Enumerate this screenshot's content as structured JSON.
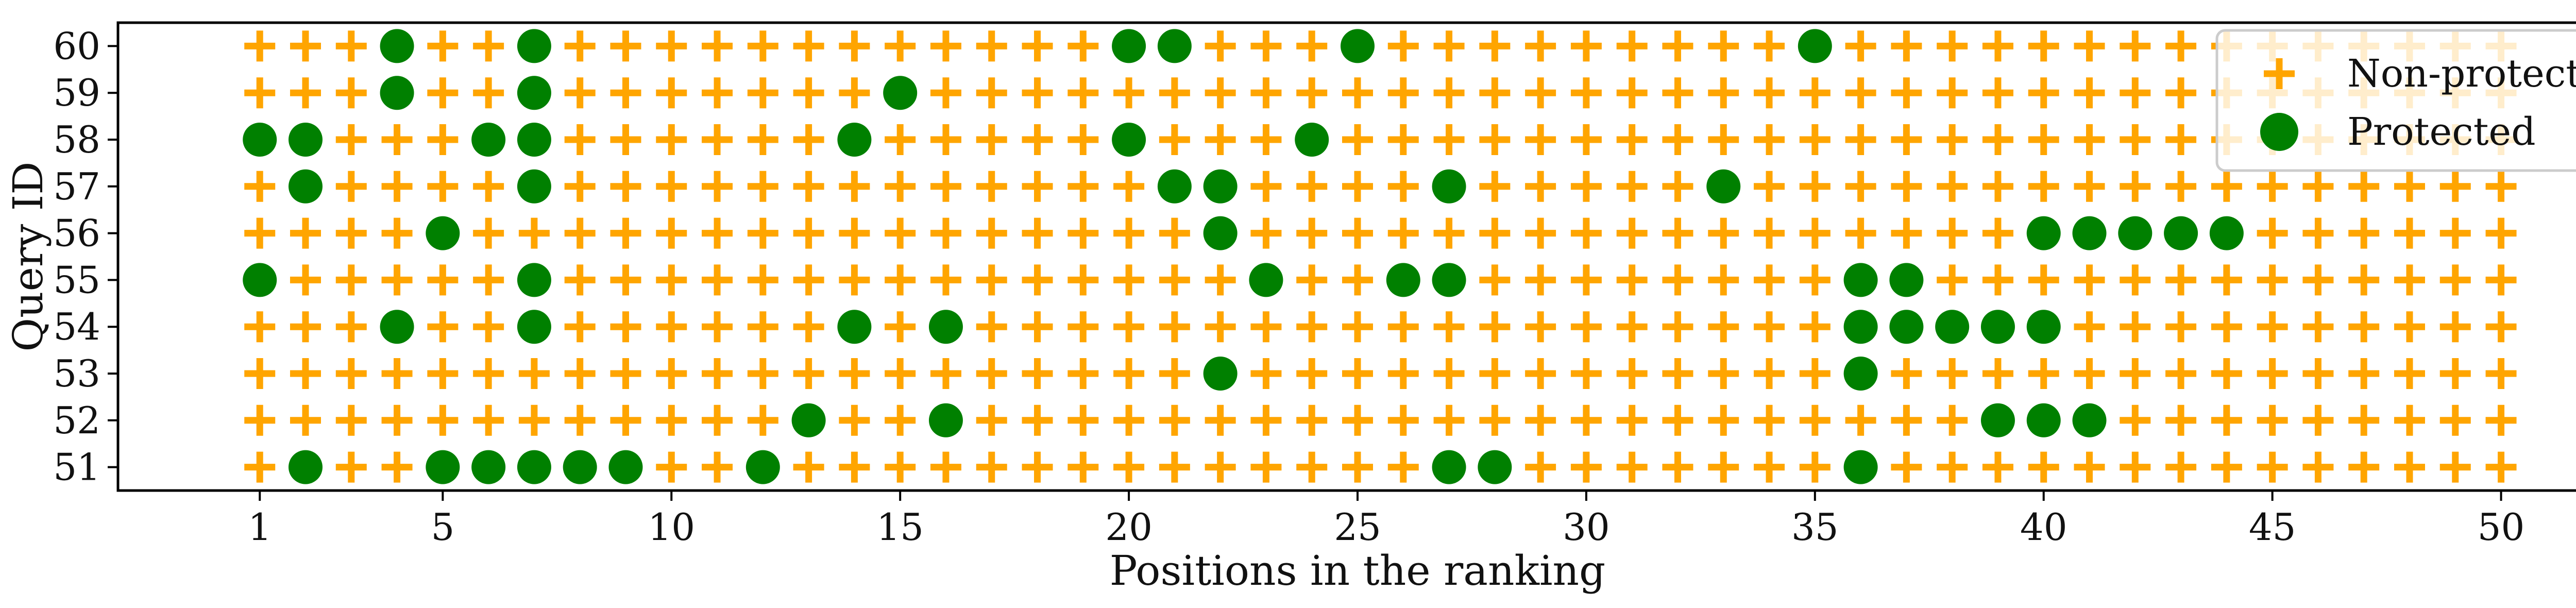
{
  "chart_data": {
    "type": "scatter",
    "xlabel": "Positions in the ranking",
    "ylabel": "Query ID",
    "xlim": [
      -2.1,
      52.1
    ],
    "ylim": [
      50.5,
      60.5
    ],
    "x_ticks": [
      1,
      5,
      10,
      15,
      20,
      25,
      30,
      35,
      40,
      45,
      50
    ],
    "y_ticks": [
      51,
      52,
      53,
      54,
      55,
      56,
      57,
      58,
      59,
      60
    ],
    "grid": false,
    "legend_position": "top-right",
    "colors": {
      "non_protected": "#FFA500",
      "protected": "#008000"
    },
    "series": [
      {
        "name": "Non-protected",
        "marker": "plus",
        "rule": "every position of every query not listed as protected"
      },
      {
        "name": "Protected",
        "marker": "circle"
      }
    ],
    "positions": [
      1,
      50
    ],
    "queries": [
      51,
      52,
      53,
      54,
      55,
      56,
      57,
      58,
      59,
      60
    ],
    "protected": {
      "60": [
        4,
        7,
        20,
        21,
        25,
        35
      ],
      "59": [
        4,
        7,
        15
      ],
      "58": [
        1,
        2,
        6,
        7,
        14,
        20,
        24
      ],
      "57": [
        2,
        7,
        21,
        22,
        27,
        33
      ],
      "56": [
        5,
        22,
        40,
        41,
        42,
        43,
        44
      ],
      "55": [
        1,
        7,
        23,
        26,
        27,
        36,
        37
      ],
      "54": [
        4,
        7,
        14,
        16,
        36,
        37,
        38,
        39,
        40
      ],
      "53": [
        22,
        36
      ],
      "52": [
        13,
        16,
        39,
        40,
        41
      ],
      "51": [
        2,
        5,
        6,
        7,
        8,
        9,
        12,
        27,
        28,
        36
      ]
    }
  }
}
